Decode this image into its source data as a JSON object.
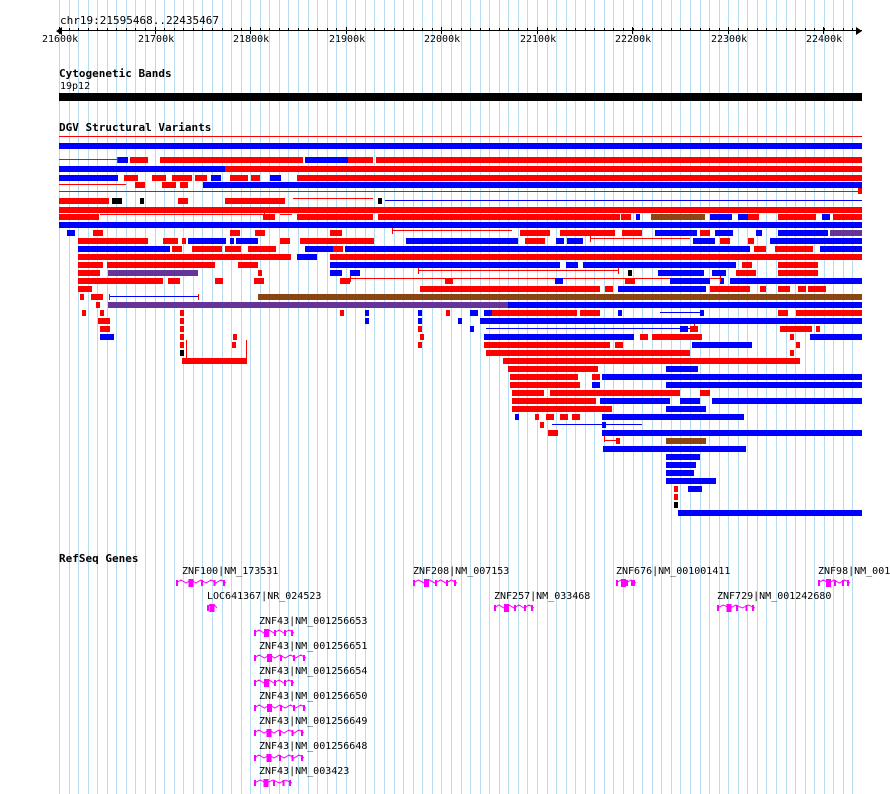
{
  "ruler": {
    "location": "chr19:21595468..22435467",
    "ticks": [
      "21600k",
      "21700k",
      "21800k",
      "21900k",
      "22000k",
      "22100k",
      "22200k",
      "22300k",
      "22400k"
    ]
  },
  "cytoband": {
    "title": "Cytogenetic Bands",
    "band_label": "19p12"
  },
  "dgv": {
    "title": "DGV Structural Variants",
    "colors": {
      "loss": "#ff0000",
      "gain": "#0000ff",
      "complex": "#000000",
      "inversion": "#663399",
      "brown": "#8b4513"
    }
  },
  "refseq": {
    "title": "RefSeq Genes",
    "color": "#ff00ff",
    "genes": [
      {
        "label": "ZNF100|NM_173531"
      },
      {
        "label": "ZNF208|NM_007153"
      },
      {
        "label": "ZNF676|NM_001001411"
      },
      {
        "label": "ZNF98|NM_001"
      },
      {
        "label": "LOC641367|NR_024523"
      },
      {
        "label": "ZNF257|NM_033468"
      },
      {
        "label": "ZNF729|NM_001242680"
      },
      {
        "label": "ZNF43|NM_001256653"
      },
      {
        "label": "ZNF43|NM_001256651"
      },
      {
        "label": "ZNF43|NM_001256654"
      },
      {
        "label": "ZNF43|NM_001256650"
      },
      {
        "label": "ZNF43|NM_001256649"
      },
      {
        "label": "ZNF43|NM_001256648"
      },
      {
        "label": "ZNF43|NM_003423"
      }
    ]
  }
}
